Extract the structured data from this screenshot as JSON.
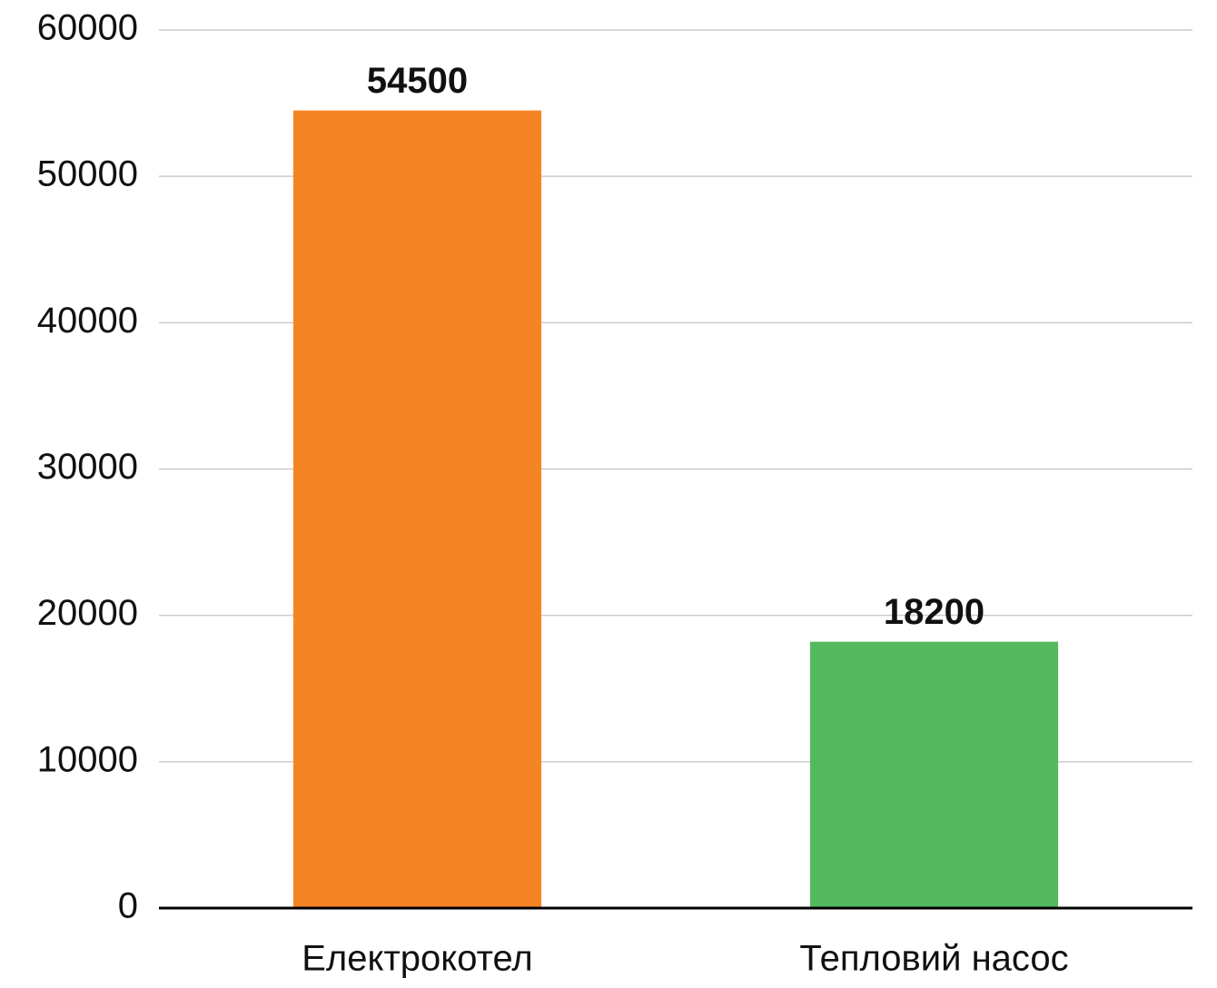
{
  "chart_data": {
    "type": "bar",
    "categories": [
      "Електрокотел",
      "Тепловий насос"
    ],
    "values": [
      54500,
      18200
    ],
    "colors": [
      "#f58424",
      "#52b95f"
    ],
    "ylim": [
      0,
      60000
    ],
    "yticks": [
      0,
      10000,
      20000,
      30000,
      40000,
      50000,
      60000
    ],
    "grid": true
  }
}
